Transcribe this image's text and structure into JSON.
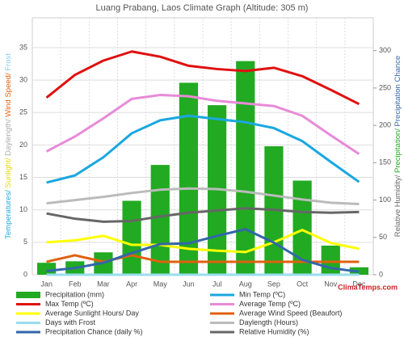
{
  "chart_data": {
    "type": "combo",
    "title": "Luang Prabang, Laos Climate Graph (Altitude: 305 m)",
    "y_label": [
      {
        "text": "Temperatures/",
        "color": "#1aa7e0"
      },
      {
        "text": " Sunlight/",
        "color": "#e6d800"
      },
      {
        "text": " Daylength/",
        "color": "#aaaaaa"
      },
      {
        "text": " Wind Speed/",
        "color": "#e06010"
      },
      {
        "text": " Frost",
        "color": "#88ccee"
      }
    ],
    "y2_label": [
      {
        "text": "Relative Humidity/",
        "color": "#666666"
      },
      {
        "text": " Precipitation/",
        "color": "#22aa22"
      },
      {
        "text": " Precipitation Chance",
        "color": "#3366aa"
      }
    ],
    "watermark": "ClimaTemps.com",
    "categories": [
      "Jan",
      "Feb",
      "Mar",
      "Apr",
      "May",
      "Jun",
      "Jul",
      "Aug",
      "Sep",
      "Oct",
      "Nov",
      "Dec"
    ],
    "ylim": [
      0,
      39.6
    ],
    "yticks": [
      0,
      5,
      10,
      15,
      20,
      25,
      30,
      35
    ],
    "y2lim": [
      0,
      344
    ],
    "y2ticks": [
      0,
      50,
      100,
      150,
      200,
      250,
      300
    ],
    "grid": true,
    "series": [
      {
        "name": "Precipitation (mm)",
        "type": "bar",
        "axis": "y2",
        "color": "#22aa22",
        "values": [
          16,
          18,
          30,
          99,
          147,
          257,
          227,
          286,
          172,
          126,
          39,
          10
        ]
      },
      {
        "name": "Min Temp (ºC)",
        "type": "line",
        "color": "#1aa7e0",
        "values": [
          14.2,
          15.3,
          18.1,
          21.8,
          23.8,
          24.5,
          24,
          23.5,
          22.6,
          20.6,
          17.4,
          14.3
        ]
      },
      {
        "name": "Max Temp (ºC)",
        "type": "line",
        "color": "#e01010",
        "values": [
          27.3,
          30.8,
          33,
          34.4,
          33.6,
          32.2,
          31.7,
          31.4,
          31.9,
          30.6,
          28.5,
          26.3
        ]
      },
      {
        "name": "Average Temp (ºC)",
        "type": "line",
        "color": "#e88ad8",
        "values": [
          19,
          21.3,
          24.1,
          27.1,
          27.7,
          27.5,
          26.8,
          26.4,
          26,
          24.5,
          21.5,
          18.6
        ]
      },
      {
        "name": "Average Sunlight Hours/ Day",
        "type": "line",
        "color": "#ffff00",
        "values": [
          5,
          5.3,
          6,
          4.6,
          4.6,
          4,
          3.7,
          3.5,
          5,
          6.9,
          4.9,
          4
        ]
      },
      {
        "name": "Average Wind Speed (Beaufort)",
        "type": "line",
        "color": "#e06010",
        "values": [
          2,
          3,
          2,
          3,
          2,
          2,
          2,
          2,
          2,
          2,
          2,
          2
        ]
      },
      {
        "name": "Days with Frost",
        "type": "line",
        "color": "#99ddee",
        "values": [
          0,
          0,
          0,
          0,
          0,
          0,
          0,
          0,
          0,
          0,
          0,
          0
        ]
      },
      {
        "name": "Daylength (Hours)",
        "type": "line",
        "color": "#bbbbbb",
        "values": [
          11,
          11.5,
          12,
          12.6,
          13.1,
          13.3,
          13.2,
          12.8,
          12.2,
          11.6,
          11.1,
          10.9
        ]
      },
      {
        "name": "Precipitation Chance (daily %)",
        "type": "line",
        "axis": "y2",
        "color": "#3366aa",
        "values": [
          5,
          9,
          16,
          29,
          41,
          42,
          52,
          61,
          43,
          20,
          9,
          4
        ]
      },
      {
        "name": "Relative Humidity (%)",
        "type": "line",
        "axis": "y2",
        "color": "#666666",
        "values": [
          82,
          75,
          71,
          72,
          78,
          83,
          86,
          89,
          87,
          84,
          83,
          84
        ]
      }
    ]
  }
}
